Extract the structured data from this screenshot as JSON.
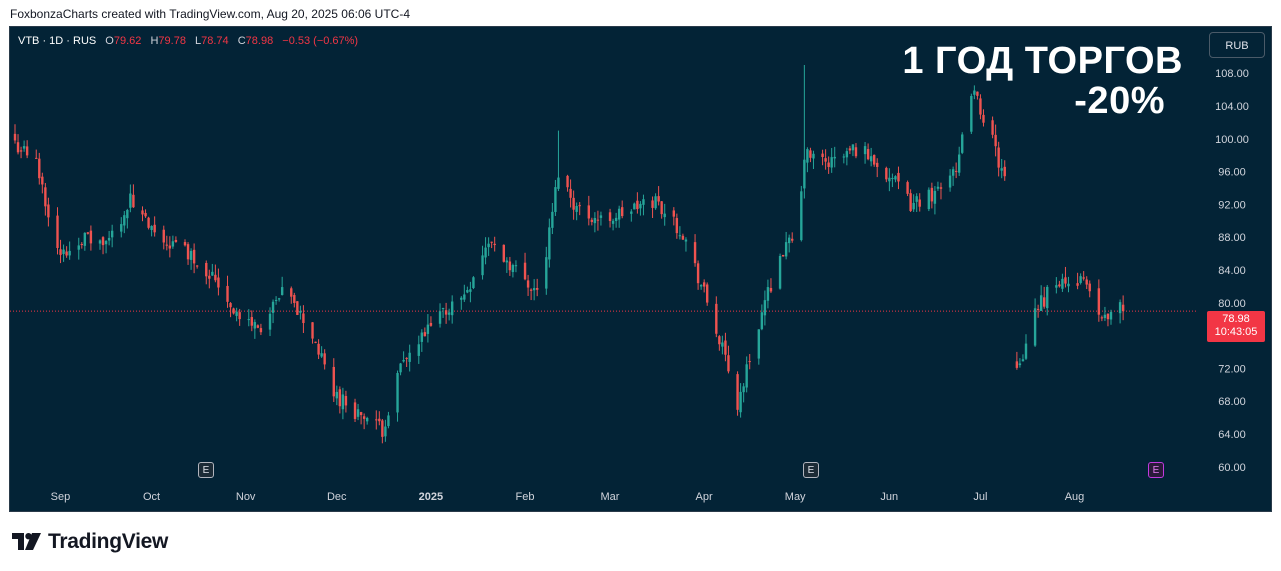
{
  "credit": "FoxbonzaCharts created with TradingView.com, Aug 20, 2025 06:06 UTC-4",
  "header": {
    "symbol": "VTB · 1D · RUS",
    "o_label": "O",
    "o_value": "79.62",
    "h_label": "H",
    "h_value": "79.78",
    "l_label": "L",
    "l_value": "78.74",
    "c_label": "C",
    "c_value": "78.98",
    "change": "−0.53 (−0.67%)"
  },
  "annotation": {
    "line1": "1 ГОД ТОРГОВ",
    "line2": "-20%"
  },
  "currency": "RUB",
  "price_label": {
    "price": "78.98",
    "countdown": "10:43:05"
  },
  "events": [
    {
      "label": "E",
      "type": "past",
      "date": "2024-11-01"
    },
    {
      "label": "E",
      "type": "past",
      "date": "2025-05-13"
    },
    {
      "label": "E",
      "type": "upcoming",
      "date": "2025-08-24"
    }
  ],
  "brand": {
    "name": "TradingView"
  },
  "colors": {
    "up": "#26a69a",
    "down": "#ef5350",
    "background": "#032336",
    "last_price": "#f23645"
  },
  "chart_data": {
    "type": "candlestick",
    "y_ticks": [
      "108.00",
      "104.00",
      "100.00",
      "96.00",
      "92.00",
      "88.00",
      "84.00",
      "80.00",
      "76.00",
      "72.00",
      "68.00",
      "64.00",
      "60.00"
    ],
    "ylim": [
      59,
      109
    ],
    "x_ticks": [
      {
        "label": "Sep",
        "date": "2024-09-01"
      },
      {
        "label": "Oct",
        "date": "2024-10-01"
      },
      {
        "label": "Nov",
        "date": "2024-11-01"
      },
      {
        "label": "Dec",
        "date": "2024-12-01"
      },
      {
        "label": "2025",
        "date": "2025-01-01"
      },
      {
        "label": "Feb",
        "date": "2025-02-01"
      },
      {
        "label": "Mar",
        "date": "2025-03-01"
      },
      {
        "label": "Apr",
        "date": "2025-04-01"
      },
      {
        "label": "May",
        "date": "2025-05-01"
      },
      {
        "label": "Jun",
        "date": "2025-06-01"
      },
      {
        "label": "Jul",
        "date": "2025-07-01"
      },
      {
        "label": "Aug",
        "date": "2025-08-01"
      }
    ],
    "xlim": [
      "2024-08-19",
      "2025-09-12"
    ],
    "last_price": 78.98,
    "gap": {
      "from": "2025-07-12",
      "to": "2025-07-15"
    },
    "anchors": [
      {
        "date": "2024-08-19",
        "close": 99.5
      },
      {
        "date": "2024-08-26",
        "close": 97.0
      },
      {
        "date": "2024-09-03",
        "close": 85.5
      },
      {
        "date": "2024-09-10",
        "close": 88.0
      },
      {
        "date": "2024-09-18",
        "close": 87.0
      },
      {
        "date": "2024-09-26",
        "close": 92.5
      },
      {
        "date": "2024-10-04",
        "close": 88.0
      },
      {
        "date": "2024-10-14",
        "close": 86.5
      },
      {
        "date": "2024-10-24",
        "close": 83.0
      },
      {
        "date": "2024-11-01",
        "close": 78.0
      },
      {
        "date": "2024-11-08",
        "close": 77.0
      },
      {
        "date": "2024-11-16",
        "close": 81.5
      },
      {
        "date": "2024-11-25",
        "close": 76.0
      },
      {
        "date": "2024-12-02",
        "close": 69.0
      },
      {
        "date": "2024-12-10",
        "close": 66.5
      },
      {
        "date": "2024-12-18",
        "close": 64.5
      },
      {
        "date": "2024-12-24",
        "close": 72.0
      },
      {
        "date": "2025-01-06",
        "close": 78.5
      },
      {
        "date": "2025-01-14",
        "close": 81.0
      },
      {
        "date": "2025-01-22",
        "close": 87.5
      },
      {
        "date": "2025-01-31",
        "close": 84.0
      },
      {
        "date": "2025-02-08",
        "close": 81.0
      },
      {
        "date": "2025-02-14",
        "close": 96.0
      },
      {
        "date": "2025-02-20",
        "close": 91.5
      },
      {
        "date": "2025-02-28",
        "close": 90.0
      },
      {
        "date": "2025-03-08",
        "close": 91.0
      },
      {
        "date": "2025-03-18",
        "close": 92.5
      },
      {
        "date": "2025-03-27",
        "close": 88.5
      },
      {
        "date": "2025-04-04",
        "close": 80.0
      },
      {
        "date": "2025-04-10",
        "close": 73.0
      },
      {
        "date": "2025-04-14",
        "close": 67.5
      },
      {
        "date": "2025-04-21",
        "close": 77.5
      },
      {
        "date": "2025-04-28",
        "close": 86.0
      },
      {
        "date": "2025-05-04",
        "close": 88.0
      },
      {
        "date": "2025-05-06",
        "close": 98.0
      },
      {
        "date": "2025-05-14",
        "close": 97.0
      },
      {
        "date": "2025-05-24",
        "close": 99.0
      },
      {
        "date": "2025-06-02",
        "close": 96.0
      },
      {
        "date": "2025-06-10",
        "close": 92.0
      },
      {
        "date": "2025-06-18",
        "close": 93.5
      },
      {
        "date": "2025-06-26",
        "close": 97.5
      },
      {
        "date": "2025-06-30",
        "close": 106.0
      },
      {
        "date": "2025-07-05",
        "close": 102.0
      },
      {
        "date": "2025-07-12",
        "close": 93.5
      },
      {
        "date": "2025-07-15",
        "close": 71.5
      },
      {
        "date": "2025-07-22",
        "close": 79.5
      },
      {
        "date": "2025-07-28",
        "close": 82.5
      },
      {
        "date": "2025-08-05",
        "close": 83.0
      },
      {
        "date": "2025-08-12",
        "close": 77.5
      },
      {
        "date": "2025-08-16",
        "close": 79.5
      },
      {
        "date": "2025-08-19",
        "close": 79.0
      }
    ]
  }
}
